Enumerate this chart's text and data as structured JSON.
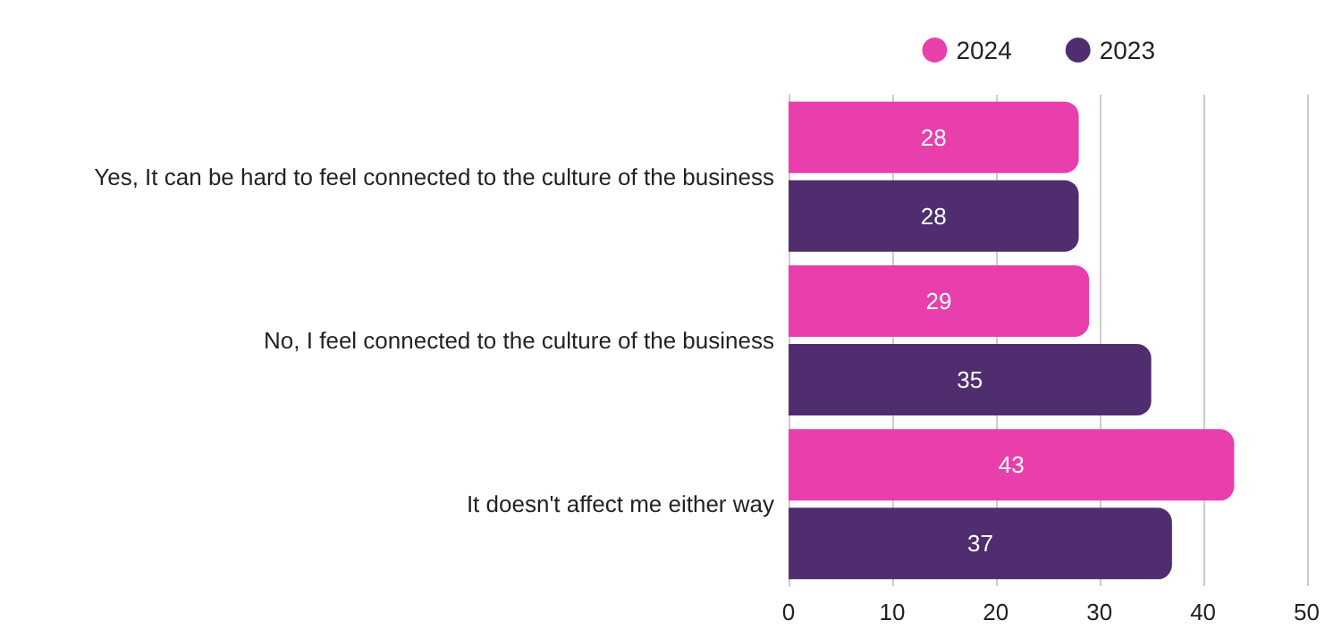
{
  "chart_data": {
    "type": "bar",
    "orientation": "horizontal",
    "categories": [
      "Yes, It can be hard to feel connected to the culture of the business",
      "No, I feel connected to the culture of the business",
      "It doesn't affect me either way"
    ],
    "series": [
      {
        "name": "2024",
        "color": "#e83fad",
        "values": [
          28,
          29,
          43
        ]
      },
      {
        "name": "2023",
        "color": "#4f2d6e",
        "values": [
          28,
          35,
          37
        ]
      }
    ],
    "xlim": [
      0,
      50
    ],
    "xticks": [
      0,
      10,
      20,
      30,
      40,
      50
    ],
    "grid": "x",
    "legend": "top right",
    "data_labels": true
  }
}
